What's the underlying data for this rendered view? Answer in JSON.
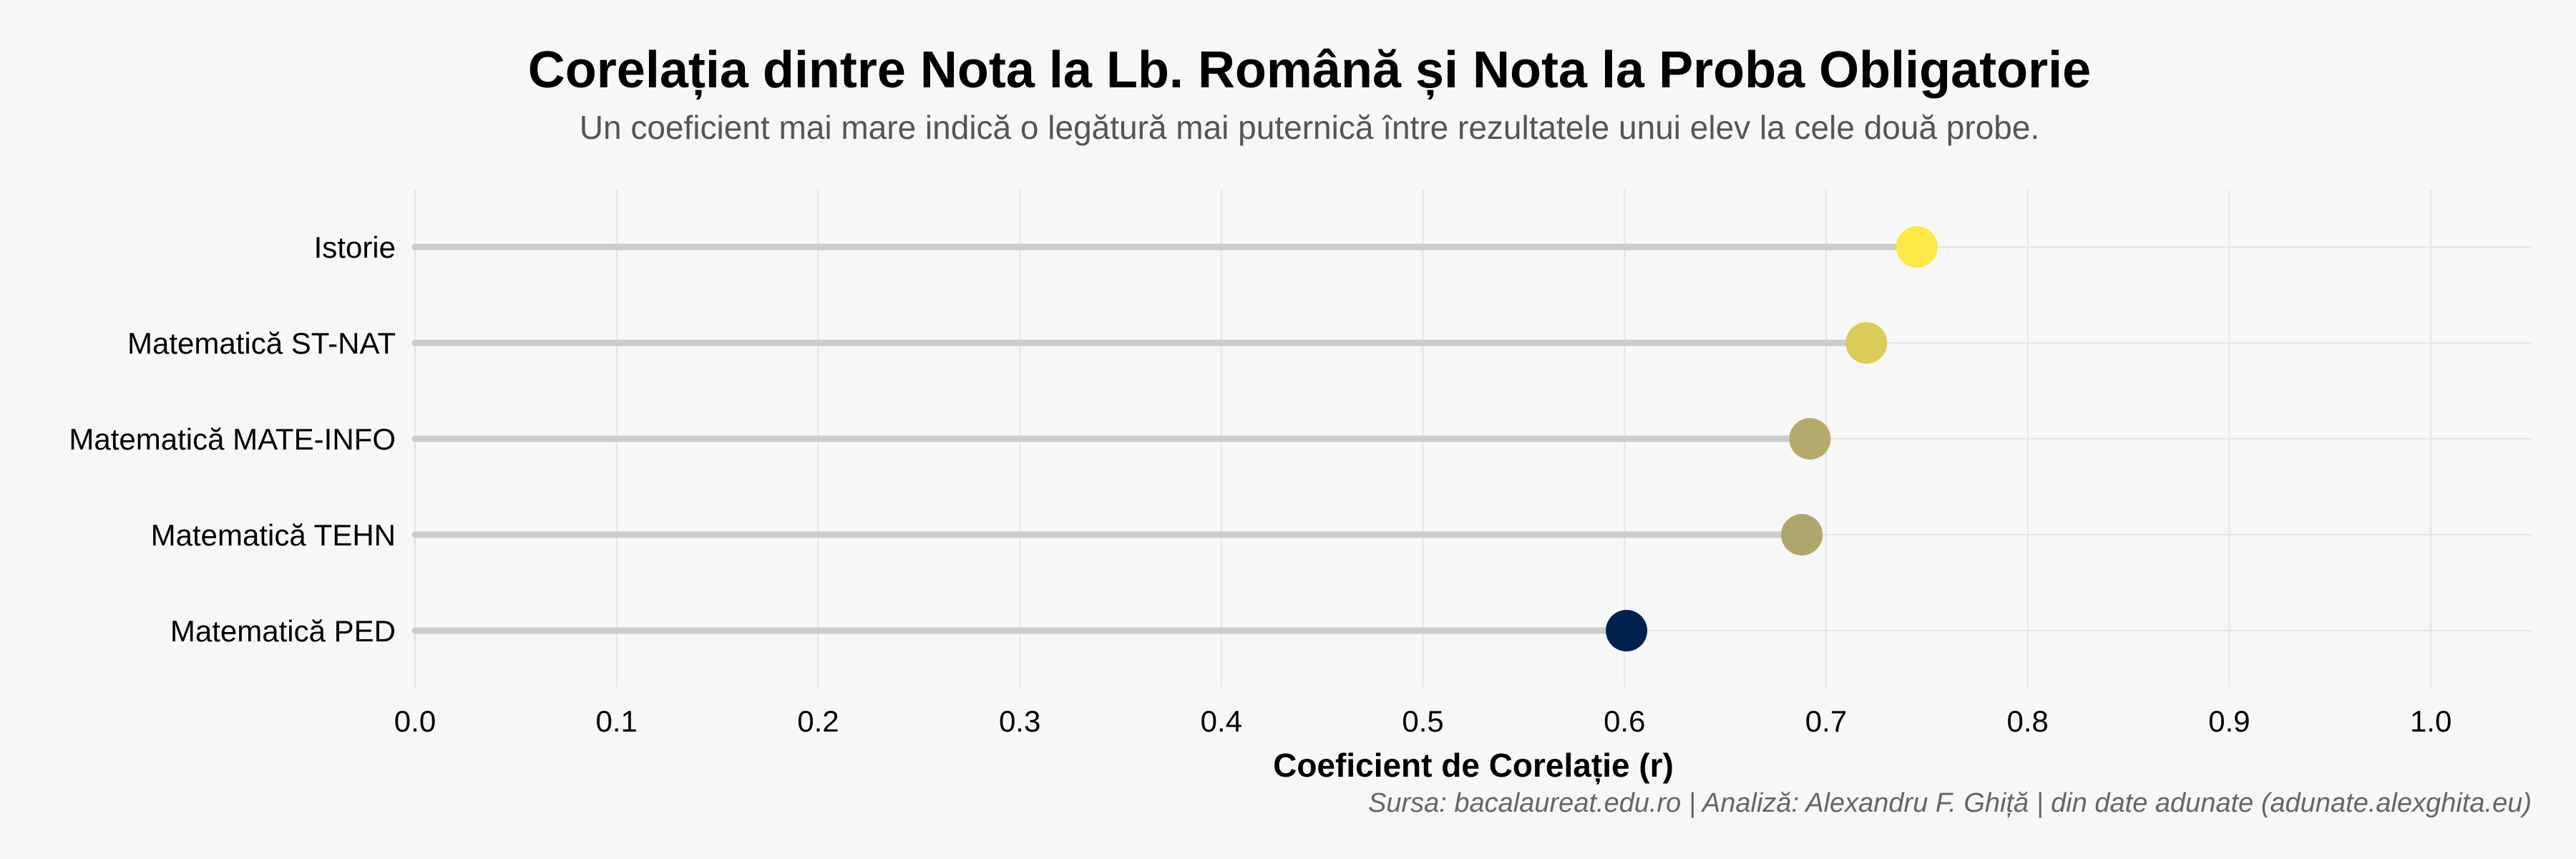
{
  "chart_data": {
    "type": "lollipop",
    "title": "Corelația dintre Nota la Lb. Română și Nota la Proba Obligatorie",
    "subtitle": "Un coeficient mai mare indică o legătură mai puternică între rezultatele unui elev la cele două probe.",
    "xlabel": "Coeficient de Corelație (r)",
    "caption": "Sursa: bacalaureat.edu.ro | Analiză: Alexandru F. Ghiță | din date adunate (adunate.alexghita.eu)",
    "xlim": [
      0.0,
      1.05
    ],
    "x_ticks": [
      "0.0",
      "0.1",
      "0.2",
      "0.3",
      "0.4",
      "0.5",
      "0.6",
      "0.7",
      "0.8",
      "0.9",
      "1.0"
    ],
    "grid": true,
    "color_scale": [
      "#00204d",
      "#fde945"
    ],
    "categories": [
      {
        "label": "Istorie",
        "value": 0.745
      },
      {
        "label": "Matematică ST-NAT",
        "value": 0.72
      },
      {
        "label": "Matematică MATE-INFO",
        "value": 0.692
      },
      {
        "label": "Matematică TEHN",
        "value": 0.688
      },
      {
        "label": "Matematică PED",
        "value": 0.601
      }
    ]
  }
}
